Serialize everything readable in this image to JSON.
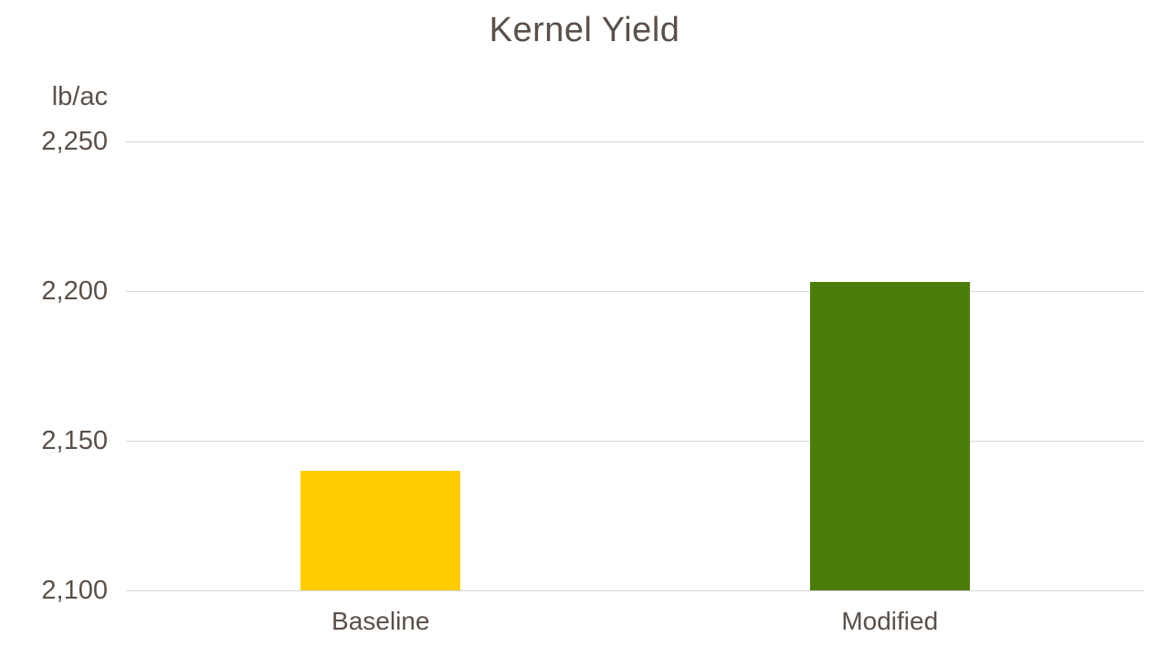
{
  "chart": {
    "title": "Kernel Yield",
    "unit_label": "lb/ac"
  },
  "chart_data": {
    "type": "bar",
    "title": "Kernel Yield",
    "xlabel": "",
    "ylabel": "lb/ac",
    "categories": [
      "Baseline",
      "Modified"
    ],
    "values": [
      2140,
      2203
    ],
    "bar_colors": [
      "#FFCD00",
      "#4C7D0A"
    ],
    "ylim": [
      2100,
      2250
    ],
    "yticks": [
      {
        "value": 2100,
        "label": "2,100"
      },
      {
        "value": 2150,
        "label": "2,150"
      },
      {
        "value": 2200,
        "label": "2,200"
      },
      {
        "value": 2250,
        "label": "2,250"
      }
    ],
    "grid": true,
    "legend": false
  },
  "colors": {
    "text": "#5A5048",
    "grid": "#D6D6D6",
    "background": "#FFFFFF"
  }
}
